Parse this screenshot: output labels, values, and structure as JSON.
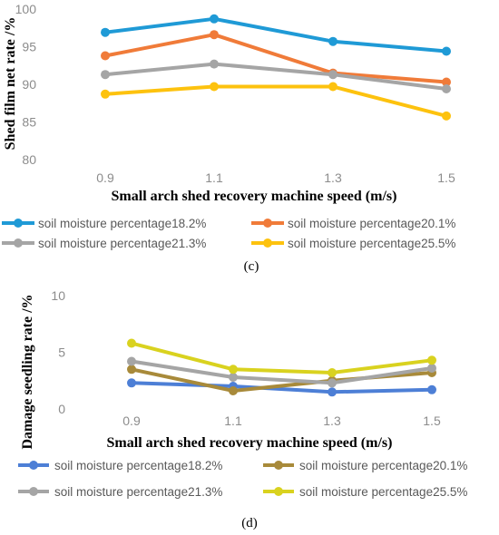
{
  "chart_data": [
    {
      "type": "line",
      "panel_label": "(c)",
      "xlabel": "Small arch shed recovery machine speed    (m/s)",
      "ylabel": "Shed film net rate /%",
      "categories": [
        "0.9",
        "1.1",
        "1.3",
        "1.5"
      ],
      "ylim": [
        80,
        100
      ],
      "yticks": [
        "80",
        "85",
        "90",
        "95",
        "100"
      ],
      "grid": false,
      "legend_position": "bottom",
      "series": [
        {
          "name": "soil moisture percentage18.2%",
          "color": "#1f9ad6",
          "values": [
            96.9,
            98.7,
            95.7,
            94.4
          ]
        },
        {
          "name": "soil moisture percentage20.1%",
          "color": "#f07b39",
          "values": [
            93.8,
            96.6,
            91.5,
            90.3
          ]
        },
        {
          "name": "soil moisture percentage21.3%",
          "color": "#a5a5a5",
          "values": [
            91.3,
            92.7,
            91.3,
            89.4
          ]
        },
        {
          "name": "soil moisture percentage25.5%",
          "color": "#fdc20e",
          "values": [
            88.7,
            89.7,
            89.7,
            85.8
          ]
        }
      ]
    },
    {
      "type": "line",
      "panel_label": "(d)",
      "xlabel": "Small arch shed recovery machine speed    (m/s)",
      "ylabel": "Damage seedling rate /%",
      "categories": [
        "0.9",
        "1.1",
        "1.3",
        "1.5"
      ],
      "ylim": [
        0,
        10
      ],
      "yticks": [
        "0",
        "5",
        "10"
      ],
      "grid": false,
      "legend_position": "bottom",
      "series": [
        {
          "name": "soil moisture percentage18.2%",
          "color": "#4d7fd6",
          "values": [
            2.3,
            2.0,
            1.5,
            1.7
          ]
        },
        {
          "name": "soil moisture percentage20.1%",
          "color": "#a88a3a",
          "values": [
            3.5,
            1.6,
            2.5,
            3.2
          ]
        },
        {
          "name": "soil moisture percentage21.3%",
          "color": "#a5a5a5",
          "values": [
            4.2,
            2.8,
            2.3,
            3.6
          ]
        },
        {
          "name": "soil moisture percentage25.5%",
          "color": "#d9d21f",
          "values": [
            5.8,
            3.5,
            3.2,
            4.3
          ]
        }
      ]
    }
  ]
}
